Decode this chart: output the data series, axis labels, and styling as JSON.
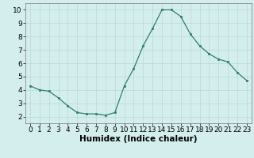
{
  "x": [
    0,
    1,
    2,
    3,
    4,
    5,
    6,
    7,
    8,
    9,
    10,
    11,
    12,
    13,
    14,
    15,
    16,
    17,
    18,
    19,
    20,
    21,
    22,
    23
  ],
  "y": [
    4.3,
    4.0,
    3.9,
    3.4,
    2.8,
    2.3,
    2.2,
    2.2,
    2.1,
    2.3,
    4.3,
    5.6,
    7.3,
    8.6,
    10.0,
    10.0,
    9.5,
    8.2,
    7.3,
    6.7,
    6.3,
    6.1,
    5.3,
    4.7
  ],
  "xlabel": "Humidex (Indice chaleur)",
  "line_color": "#2e7d6e",
  "marker_color": "#2e7d6e",
  "bg_color": "#d4eeee",
  "grid_color": "#b8d8d8",
  "xlim": [
    -0.5,
    23.5
  ],
  "ylim": [
    1.5,
    10.5
  ],
  "yticks": [
    2,
    3,
    4,
    5,
    6,
    7,
    8,
    9,
    10
  ],
  "xticks": [
    0,
    1,
    2,
    3,
    4,
    5,
    6,
    7,
    8,
    9,
    10,
    11,
    12,
    13,
    14,
    15,
    16,
    17,
    18,
    19,
    20,
    21,
    22,
    23
  ],
  "xlabel_fontsize": 7.5,
  "tick_fontsize": 6.5
}
